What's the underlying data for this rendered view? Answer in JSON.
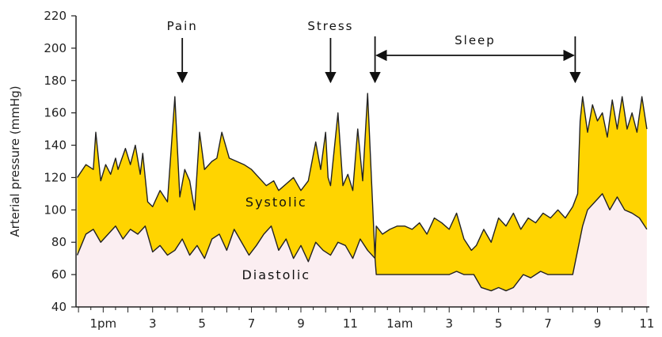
{
  "chart_data": {
    "type": "area",
    "ylabel": "Arterial pressure (mmHg)",
    "ylim": [
      40,
      220
    ],
    "yticks": [
      40,
      60,
      80,
      100,
      120,
      140,
      160,
      180,
      200,
      220
    ],
    "x_unit": "hour of day (12 = noon, continuing past midnight)",
    "xlim": [
      11.9,
      35.1
    ],
    "xticks": [
      {
        "x": 13,
        "label": "1pm"
      },
      {
        "x": 15,
        "label": "3"
      },
      {
        "x": 17,
        "label": "5"
      },
      {
        "x": 19,
        "label": "7"
      },
      {
        "x": 21,
        "label": "9"
      },
      {
        "x": 23,
        "label": "11"
      },
      {
        "x": 25,
        "label": "1am"
      },
      {
        "x": 27,
        "label": "3"
      },
      {
        "x": 29,
        "label": "5"
      },
      {
        "x": 31,
        "label": "7"
      },
      {
        "x": 33,
        "label": "9"
      },
      {
        "x": 35,
        "label": "11"
      }
    ],
    "band_color": "#ffd400",
    "low_fill_color": "#fbeef1",
    "series": [
      {
        "name": "Systolic",
        "x": [
          11.95,
          12.3,
          12.6,
          12.7,
          12.9,
          13.1,
          13.3,
          13.5,
          13.6,
          13.9,
          14.1,
          14.3,
          14.5,
          14.6,
          14.8,
          15.0,
          15.3,
          15.6,
          15.9,
          16.1,
          16.3,
          16.5,
          16.7,
          16.9,
          17.1,
          17.4,
          17.6,
          17.8,
          18.1,
          18.4,
          18.7,
          19.0,
          19.3,
          19.6,
          19.9,
          20.1,
          20.4,
          20.7,
          21.0,
          21.3,
          21.6,
          21.8,
          22.0,
          22.1,
          22.2,
          22.5,
          22.7,
          22.9,
          23.1,
          23.3,
          23.5,
          23.7,
          24.0,
          24.05,
          24.3,
          24.6,
          24.9,
          25.2,
          25.5,
          25.8,
          26.1,
          26.4,
          26.7,
          27.0,
          27.3,
          27.6,
          27.9,
          28.1,
          28.4,
          28.7,
          29.0,
          29.3,
          29.6,
          29.9,
          30.2,
          30.5,
          30.8,
          31.1,
          31.4,
          31.7,
          32.0,
          32.2,
          32.3,
          32.4,
          32.6,
          32.8,
          33.0,
          33.2,
          33.4,
          33.6,
          33.8,
          34.0,
          34.2,
          34.4,
          34.6,
          34.8,
          35.0
        ],
        "values": [
          120,
          128,
          125,
          148,
          118,
          128,
          122,
          132,
          125,
          138,
          128,
          140,
          122,
          135,
          105,
          102,
          112,
          105,
          170,
          108,
          125,
          118,
          100,
          148,
          125,
          130,
          132,
          148,
          132,
          130,
          128,
          125,
          120,
          115,
          118,
          112,
          116,
          120,
          112,
          118,
          142,
          125,
          148,
          120,
          115,
          160,
          115,
          122,
          112,
          150,
          118,
          172,
          70,
          90,
          85,
          88,
          90,
          90,
          88,
          92,
          85,
          95,
          92,
          88,
          98,
          82,
          75,
          78,
          88,
          80,
          95,
          90,
          98,
          88,
          95,
          92,
          98,
          95,
          100,
          95,
          102,
          110,
          155,
          170,
          148,
          165,
          155,
          160,
          145,
          168,
          150,
          170,
          150,
          160,
          148,
          170,
          150
        ]
      },
      {
        "name": "Diastolic",
        "x": [
          11.95,
          12.3,
          12.6,
          12.9,
          13.2,
          13.5,
          13.8,
          14.1,
          14.4,
          14.7,
          15.0,
          15.3,
          15.6,
          15.9,
          16.2,
          16.5,
          16.8,
          17.1,
          17.4,
          17.7,
          18.0,
          18.3,
          18.6,
          18.9,
          19.2,
          19.5,
          19.8,
          20.1,
          20.4,
          20.7,
          21.0,
          21.3,
          21.6,
          21.9,
          22.2,
          22.5,
          22.8,
          23.1,
          23.4,
          23.7,
          24.0,
          24.05,
          24.5,
          25.0,
          25.5,
          26.0,
          26.5,
          27.0,
          27.3,
          27.6,
          28.0,
          28.3,
          28.7,
          29.0,
          29.3,
          29.6,
          30.0,
          30.3,
          30.7,
          31.0,
          31.5,
          32.0,
          32.2,
          32.4,
          32.6,
          32.9,
          33.2,
          33.5,
          33.8,
          34.1,
          34.4,
          34.7,
          35.0
        ],
        "values": [
          72,
          85,
          88,
          80,
          85,
          90,
          82,
          88,
          85,
          90,
          74,
          78,
          72,
          75,
          82,
          72,
          78,
          70,
          82,
          85,
          75,
          88,
          80,
          72,
          78,
          85,
          90,
          75,
          82,
          70,
          78,
          68,
          80,
          75,
          72,
          80,
          78,
          70,
          82,
          75,
          70,
          60,
          60,
          60,
          60,
          60,
          60,
          60,
          62,
          60,
          60,
          52,
          50,
          52,
          50,
          52,
          60,
          58,
          62,
          60,
          60,
          60,
          75,
          90,
          100,
          105,
          110,
          100,
          108,
          100,
          98,
          95,
          88
        ]
      }
    ],
    "series_labels": [
      {
        "text": "Systolic",
        "x": 20.0,
        "y": 102
      },
      {
        "text": "Diastolic",
        "x": 20.0,
        "y": 57
      }
    ],
    "annotations": [
      {
        "text": "Pain",
        "x": 16.2,
        "arrow_to": 180
      },
      {
        "text": "Stress",
        "x": 22.2,
        "arrow_to": 180
      },
      {
        "text": "",
        "x": 24.0,
        "arrow_to": 180
      }
    ],
    "range_annotation": {
      "text": "Sleep",
      "x_start": 24.0,
      "x_end": 32.1,
      "arrow_to": 180
    }
  }
}
